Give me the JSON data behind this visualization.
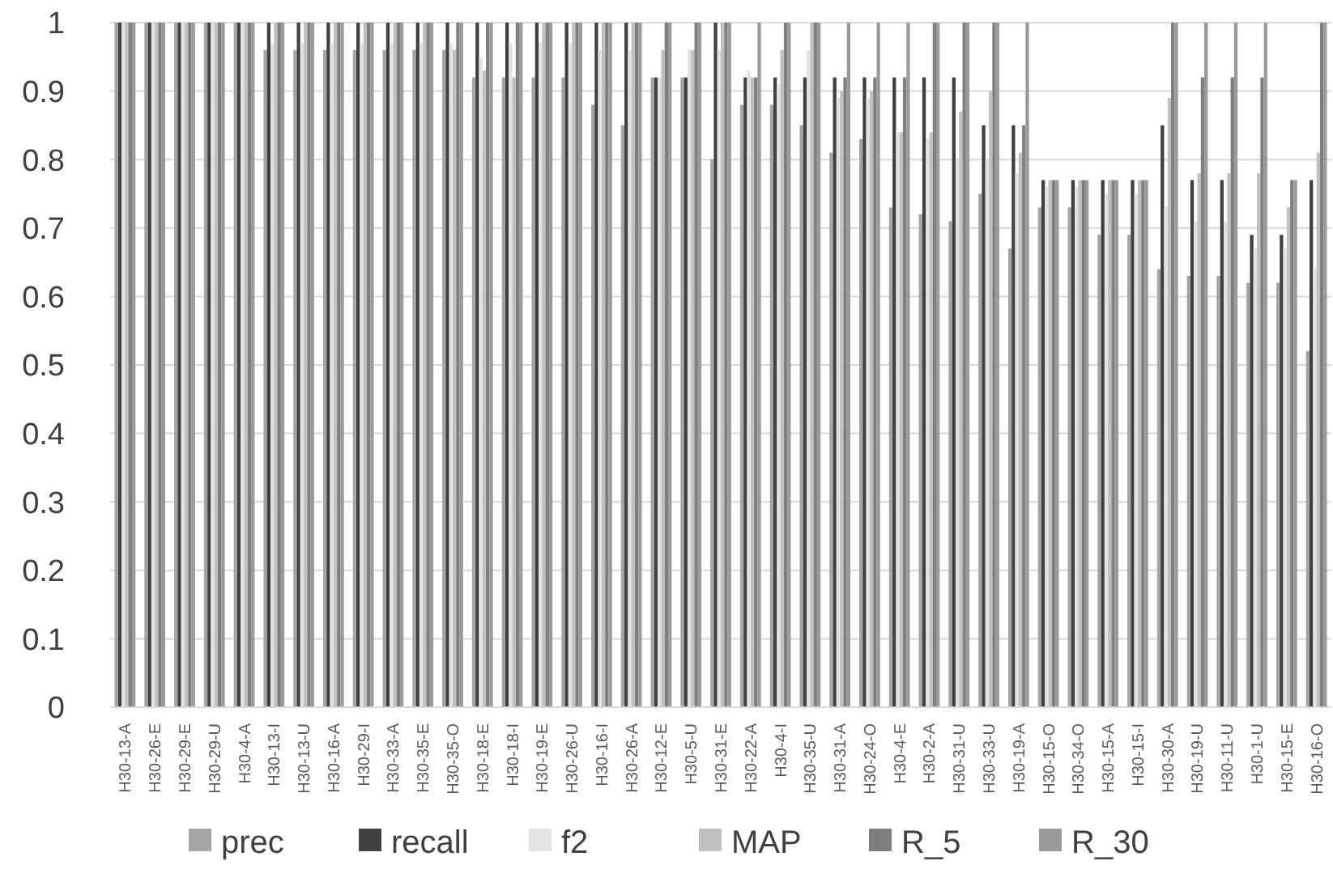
{
  "chart_data": {
    "type": "bar",
    "categories": [
      "H30-13-A",
      "H30-26-E",
      "H30-29-E",
      "H30-29-U",
      "H30-4-A",
      "H30-13-I",
      "H30-13-U",
      "H30-16-A",
      "H30-29-I",
      "H30-33-A",
      "H30-35-E",
      "H30-35-O",
      "H30-18-E",
      "H30-18-I",
      "H30-19-E",
      "H30-26-U",
      "H30-16-I",
      "H30-26-A",
      "H30-12-E",
      "H30-5-U",
      "H30-31-E",
      "H30-22-A",
      "H30-4-I",
      "H30-35-U",
      "H30-31-A",
      "H30-24-O",
      "H30-4-E",
      "H30-2-A",
      "H30-31-U",
      "H30-33-U",
      "H30-19-A",
      "H30-15-O",
      "H30-34-O",
      "H30-15-A",
      "H30-15-I",
      "H30-30-A",
      "H30-19-U",
      "H30-11-U",
      "H30-1-U",
      "H30-15-E",
      "H30-16-O"
    ],
    "series": [
      {
        "name": "prec",
        "color": "#a5a5a5",
        "values": [
          1,
          1,
          1,
          1,
          1,
          0.96,
          0.96,
          0.96,
          0.96,
          0.96,
          0.96,
          0.96,
          0.92,
          0.92,
          0.92,
          0.92,
          0.88,
          0.85,
          0.92,
          0.92,
          0.8,
          0.88,
          0.88,
          0.85,
          0.81,
          0.83,
          0.73,
          0.72,
          0.71,
          0.75,
          0.67,
          0.73,
          0.73,
          0.69,
          0.69,
          0.64,
          0.63,
          0.63,
          0.62,
          0.62,
          0.52
        ]
      },
      {
        "name": "recall",
        "color": "#404040",
        "values": [
          1,
          1,
          1,
          1,
          1,
          1,
          1,
          1,
          1,
          1,
          1,
          1,
          1,
          1,
          1,
          1,
          1,
          1,
          0.92,
          0.92,
          1,
          0.92,
          0.92,
          0.92,
          0.92,
          0.92,
          0.92,
          0.92,
          0.92,
          0.85,
          0.85,
          0.77,
          0.77,
          0.77,
          0.77,
          0.85,
          0.77,
          0.77,
          0.69,
          0.69,
          0.77
        ]
      },
      {
        "name": "f2",
        "color": "#e3e3e3",
        "values": [
          1,
          1,
          1,
          1,
          1,
          0.97,
          0.97,
          0.97,
          0.97,
          0.97,
          0.97,
          0.97,
          0.95,
          0.97,
          0.97,
          0.97,
          0.96,
          0.96,
          0.92,
          0.96,
          0.96,
          0.93,
          0.91,
          0.96,
          0.89,
          0.89,
          0.84,
          0.83,
          0.8,
          0.8,
          0.78,
          0.76,
          0.76,
          0.75,
          0.75,
          0.73,
          0.71,
          0.71,
          0.67,
          0.67,
          0.64
        ]
      },
      {
        "name": "MAP",
        "color": "#c0c0c0",
        "values": [
          1,
          1,
          1,
          1,
          1,
          1,
          1,
          1,
          1,
          1,
          1,
          0.96,
          0.93,
          0.92,
          1,
          1,
          1,
          1,
          0.96,
          0.96,
          1,
          0.92,
          0.96,
          1,
          0.9,
          0.9,
          0.84,
          0.84,
          0.87,
          0.9,
          0.81,
          0.77,
          0.77,
          0.77,
          0.77,
          0.89,
          0.78,
          0.78,
          0.78,
          0.73,
          0.81
        ]
      },
      {
        "name": "R_5",
        "color": "#7f7f7f",
        "values": [
          1,
          1,
          1,
          1,
          1,
          1,
          1,
          1,
          1,
          1,
          1,
          1,
          1,
          1,
          1,
          1,
          1,
          1,
          1,
          1,
          1,
          0.92,
          1,
          1,
          0.92,
          0.92,
          0.92,
          1,
          1,
          1,
          0.85,
          0.77,
          0.77,
          0.77,
          0.77,
          1,
          0.92,
          0.92,
          0.92,
          0.77,
          1
        ]
      },
      {
        "name": "R_30",
        "color": "#9a9a9a",
        "values": [
          1,
          1,
          1,
          1,
          1,
          1,
          1,
          1,
          1,
          1,
          1,
          1,
          1,
          1,
          1,
          1,
          1,
          1,
          1,
          1,
          1,
          1,
          1,
          1,
          1,
          1,
          1,
          1,
          1,
          1,
          1,
          0.77,
          0.77,
          0.77,
          0.77,
          1,
          1,
          1,
          1,
          0.77,
          1
        ]
      }
    ],
    "ylim": [
      0,
      1
    ],
    "yticks": [
      0,
      0.1,
      0.2,
      0.3,
      0.4,
      0.5,
      0.6,
      0.7,
      0.8,
      0.9,
      1
    ],
    "grid": "y",
    "legend": "bottom"
  }
}
